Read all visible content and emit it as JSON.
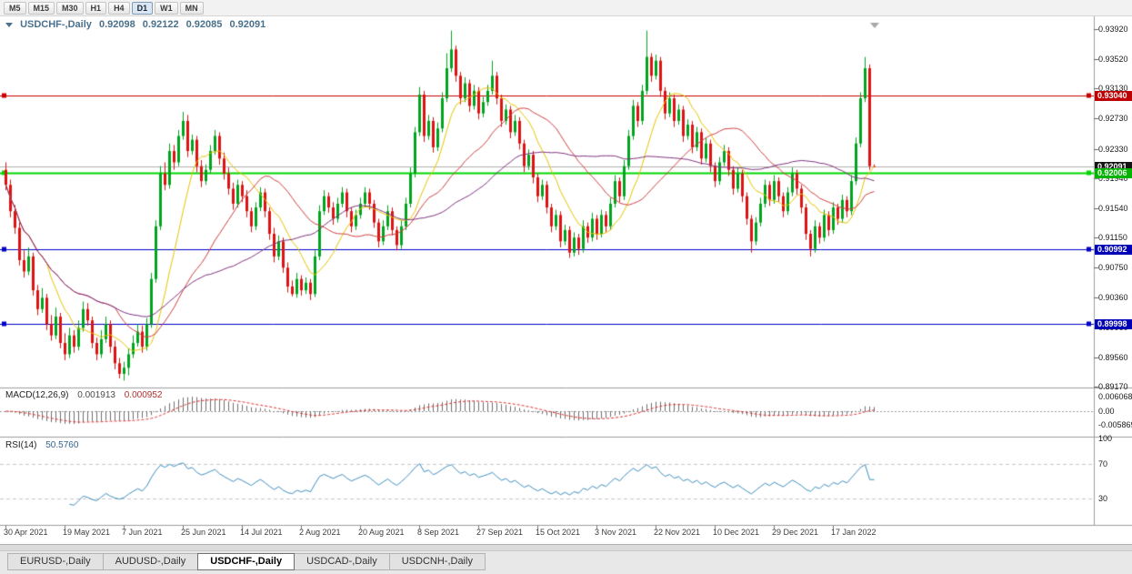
{
  "toolbar": {
    "timeframes": [
      "M5",
      "M15",
      "M30",
      "H1",
      "H4",
      "D1",
      "W1",
      "MN"
    ],
    "active_timeframe": "D1"
  },
  "header": {
    "symbol": "USDCHF-,Daily",
    "open": "0.92098",
    "high": "0.92122",
    "low": "0.92085",
    "close": "0.92091"
  },
  "price_scale": {
    "labels": [
      "0.93920",
      "0.93520",
      "0.93130",
      "0.92730",
      "0.92330",
      "0.91940",
      "0.91540",
      "0.91150",
      "0.90750",
      "0.90360",
      "0.89960",
      "0.89560",
      "0.89170"
    ]
  },
  "price_markers": [
    {
      "name": "resistance-line",
      "label": "0.93040",
      "price": 0.9304,
      "bg": "#C00000",
      "fg": "#FFFFFF"
    },
    {
      "name": "current-price",
      "label": "0.92091",
      "price": 0.92091,
      "bg": "#141414",
      "fg": "#FFFFFF"
    },
    {
      "name": "support-green",
      "label": "0.92006",
      "price": 0.92006,
      "bg": "#00B400",
      "fg": "#FFFFFF"
    },
    {
      "name": "support-blue-upper",
      "label": "0.90992",
      "price": 0.90992,
      "bg": "#0000B4",
      "fg": "#FFFFFF"
    },
    {
      "name": "support-blue-lower",
      "label": "0.89998",
      "price": 0.89998,
      "bg": "#0000B4",
      "fg": "#FFFFFF"
    }
  ],
  "indicators": {
    "macd": {
      "label": "MACD(12,26,9)",
      "value_macd": "0.001913",
      "value_signal": "0.000952",
      "scale": [
        "0.006068",
        "0.00",
        "-0.005869"
      ],
      "scale_values": [
        0.006068,
        0,
        -0.005869
      ]
    },
    "rsi": {
      "label": "RSI(14)",
      "value": "50.5760",
      "scale": [
        "100",
        "70",
        "30"
      ],
      "levels": [
        70,
        30
      ]
    }
  },
  "tabs": [
    {
      "label": "EURUSD-,Daily",
      "active": false
    },
    {
      "label": "AUDUSD-,Daily",
      "active": false
    },
    {
      "label": "USDCHF-,Daily",
      "active": true
    },
    {
      "label": "USDCAD-,Daily",
      "active": false
    },
    {
      "label": "USDCNH-,Daily",
      "active": false
    }
  ],
  "colors": {
    "bull": "#00A41E",
    "bear": "#DE1212",
    "ma_fast": "#E8C400",
    "ma_mid": "#D04040",
    "ma_slow": "#803380",
    "macd_hist": "#707070",
    "macd_signal": "#E03030",
    "rsi_line": "#3E8FC0",
    "hline_red": "#CC0000",
    "hline_green": "#00D800",
    "hline_blue": "#0000C8",
    "bid_line": "#B0B0B0"
  },
  "chart_data": {
    "type": "candlestick",
    "title": "USDCHF Daily",
    "ylim": [
      0.8917,
      0.9392
    ],
    "bars_per_label": 13,
    "x_labels": [
      "30 Apr 2021",
      "19 May 2021",
      "7 Jun 2021",
      "25 Jun 2021",
      "14 Jul 2021",
      "2 Aug 2021",
      "20 Aug 2021",
      "8 Sep 2021",
      "27 Sep 2021",
      "15 Oct 2021",
      "3 Nov 2021",
      "22 Nov 2021",
      "10 Dec 2021",
      "29 Dec 2021",
      "17 Jan 2022"
    ],
    "hlines": [
      {
        "price": 0.9304,
        "color_key": "hline_red"
      },
      {
        "price": 0.92091,
        "color_key": "bid_line"
      },
      {
        "price": 0.92006,
        "color_key": "hline_green"
      },
      {
        "price": 0.90992,
        "color_key": "hline_blue"
      },
      {
        "price": 0.89998,
        "color_key": "hline_blue"
      }
    ],
    "moving_averages": [
      {
        "period": 10,
        "color_key": "ma_fast"
      },
      {
        "period": 25,
        "color_key": "ma_mid"
      },
      {
        "period": 45,
        "color_key": "ma_slow"
      }
    ],
    "candles_ohlc": [
      [
        0.9205,
        0.9215,
        0.9178,
        0.9185
      ],
      [
        0.9185,
        0.9192,
        0.9142,
        0.915
      ],
      [
        0.915,
        0.9158,
        0.912,
        0.9128
      ],
      [
        0.9128,
        0.9135,
        0.9078,
        0.9085
      ],
      [
        0.9085,
        0.9098,
        0.9062,
        0.907
      ],
      [
        0.907,
        0.9102,
        0.9065,
        0.909
      ],
      [
        0.909,
        0.9095,
        0.9038,
        0.9045
      ],
      [
        0.9045,
        0.9052,
        0.9012,
        0.902
      ],
      [
        0.902,
        0.9048,
        0.9015,
        0.9035
      ],
      [
        0.9035,
        0.904,
        0.8992,
        0.9
      ],
      [
        0.9,
        0.9012,
        0.8978,
        0.8985
      ],
      [
        0.8985,
        0.9022,
        0.898,
        0.901
      ],
      [
        0.901,
        0.9015,
        0.8968,
        0.8975
      ],
      [
        0.8975,
        0.8988,
        0.8952,
        0.896
      ],
      [
        0.896,
        0.8995,
        0.8955,
        0.8985
      ],
      [
        0.8985,
        0.8992,
        0.8962,
        0.897
      ],
      [
        0.897,
        0.9005,
        0.8965,
        0.8995
      ],
      [
        0.8995,
        0.903,
        0.899,
        0.902
      ],
      [
        0.902,
        0.9028,
        0.8998,
        0.9005
      ],
      [
        0.9005,
        0.901,
        0.8968,
        0.8975
      ],
      [
        0.8975,
        0.8982,
        0.8952,
        0.896
      ],
      [
        0.896,
        0.8992,
        0.8955,
        0.898
      ],
      [
        0.898,
        0.901,
        0.8975,
        0.9
      ],
      [
        0.9,
        0.9005,
        0.8962,
        0.897
      ],
      [
        0.897,
        0.8978,
        0.894,
        0.8948
      ],
      [
        0.8948,
        0.8955,
        0.8928,
        0.8934
      ],
      [
        0.8934,
        0.895,
        0.8925,
        0.8942
      ],
      [
        0.8942,
        0.8968,
        0.8932,
        0.896
      ],
      [
        0.896,
        0.8985,
        0.8955,
        0.8975
      ],
      [
        0.8975,
        0.9,
        0.897,
        0.899
      ],
      [
        0.899,
        0.8998,
        0.8962,
        0.897
      ],
      [
        0.897,
        0.9008,
        0.8965,
        0.9
      ],
      [
        0.9,
        0.9068,
        0.8995,
        0.906
      ],
      [
        0.906,
        0.9138,
        0.9055,
        0.913
      ],
      [
        0.913,
        0.921,
        0.9125,
        0.92
      ],
      [
        0.92,
        0.9215,
        0.9178,
        0.9185
      ],
      [
        0.9185,
        0.924,
        0.918,
        0.923
      ],
      [
        0.923,
        0.9238,
        0.9205,
        0.9215
      ],
      [
        0.9215,
        0.9258,
        0.921,
        0.925
      ],
      [
        0.925,
        0.9282,
        0.9245,
        0.927
      ],
      [
        0.927,
        0.9278,
        0.9222,
        0.923
      ],
      [
        0.923,
        0.9252,
        0.9225,
        0.9245
      ],
      [
        0.9245,
        0.925,
        0.9202,
        0.921
      ],
      [
        0.921,
        0.9218,
        0.9182,
        0.919
      ],
      [
        0.919,
        0.9212,
        0.9185,
        0.9205
      ],
      [
        0.9205,
        0.9238,
        0.92,
        0.923
      ],
      [
        0.923,
        0.9258,
        0.9225,
        0.925
      ],
      [
        0.925,
        0.9255,
        0.9212,
        0.922
      ],
      [
        0.922,
        0.9228,
        0.9192,
        0.92
      ],
      [
        0.92,
        0.9208,
        0.9172,
        0.918
      ],
      [
        0.918,
        0.9188,
        0.9152,
        0.916
      ],
      [
        0.916,
        0.9192,
        0.9155,
        0.9185
      ],
      [
        0.9185,
        0.919,
        0.9162,
        0.917
      ],
      [
        0.917,
        0.9178,
        0.9142,
        0.915
      ],
      [
        0.915,
        0.9155,
        0.9122,
        0.913
      ],
      [
        0.913,
        0.9162,
        0.9125,
        0.9155
      ],
      [
        0.9155,
        0.9182,
        0.915,
        0.9175
      ],
      [
        0.9175,
        0.918,
        0.9142,
        0.915
      ],
      [
        0.915,
        0.9155,
        0.9112,
        0.912
      ],
      [
        0.912,
        0.9128,
        0.9082,
        0.909
      ],
      [
        0.909,
        0.9118,
        0.9085,
        0.911
      ],
      [
        0.911,
        0.9115,
        0.9068,
        0.9075
      ],
      [
        0.9075,
        0.9082,
        0.9042,
        0.905
      ],
      [
        0.905,
        0.9058,
        0.9037,
        0.904
      ],
      [
        0.904,
        0.9068,
        0.9035,
        0.906
      ],
      [
        0.906,
        0.9065,
        0.9038,
        0.9045
      ],
      [
        0.9045,
        0.9062,
        0.904,
        0.9055
      ],
      [
        0.9055,
        0.906,
        0.9032,
        0.904
      ],
      [
        0.904,
        0.9098,
        0.9036,
        0.909
      ],
      [
        0.909,
        0.9158,
        0.9085,
        0.915
      ],
      [
        0.915,
        0.9178,
        0.9145,
        0.917
      ],
      [
        0.917,
        0.9175,
        0.9148,
        0.9155
      ],
      [
        0.9155,
        0.9162,
        0.9132,
        0.914
      ],
      [
        0.914,
        0.9168,
        0.9135,
        0.916
      ],
      [
        0.916,
        0.9182,
        0.9155,
        0.9175
      ],
      [
        0.9175,
        0.918,
        0.9142,
        0.915
      ],
      [
        0.915,
        0.9155,
        0.9122,
        0.913
      ],
      [
        0.913,
        0.9152,
        0.9125,
        0.9145
      ],
      [
        0.9145,
        0.9168,
        0.914,
        0.916
      ],
      [
        0.916,
        0.9182,
        0.9155,
        0.9175
      ],
      [
        0.9175,
        0.918,
        0.9152,
        0.916
      ],
      [
        0.916,
        0.9165,
        0.9128,
        0.9135
      ],
      [
        0.9135,
        0.914,
        0.9102,
        0.911
      ],
      [
        0.911,
        0.9138,
        0.9105,
        0.913
      ],
      [
        0.913,
        0.9158,
        0.9125,
        0.915
      ],
      [
        0.915,
        0.9155,
        0.9118,
        0.9125
      ],
      [
        0.9125,
        0.913,
        0.9098,
        0.9105
      ],
      [
        0.9105,
        0.9138,
        0.91,
        0.913
      ],
      [
        0.913,
        0.9168,
        0.9125,
        0.916
      ],
      [
        0.916,
        0.9208,
        0.9155,
        0.92
      ],
      [
        0.92,
        0.9262,
        0.9195,
        0.9255
      ],
      [
        0.9255,
        0.9315,
        0.925,
        0.9305
      ],
      [
        0.9305,
        0.931,
        0.9242,
        0.925
      ],
      [
        0.925,
        0.9278,
        0.9245,
        0.927
      ],
      [
        0.927,
        0.9275,
        0.9228,
        0.9235
      ],
      [
        0.9235,
        0.9268,
        0.923,
        0.926
      ],
      [
        0.926,
        0.9308,
        0.9255,
        0.93
      ],
      [
        0.93,
        0.936,
        0.9295,
        0.934
      ],
      [
        0.934,
        0.939,
        0.9335,
        0.9365
      ],
      [
        0.9365,
        0.937,
        0.9322,
        0.933
      ],
      [
        0.933,
        0.9335,
        0.9292,
        0.93
      ],
      [
        0.93,
        0.9328,
        0.9295,
        0.932
      ],
      [
        0.932,
        0.9325,
        0.9282,
        0.929
      ],
      [
        0.929,
        0.9318,
        0.9285,
        0.931
      ],
      [
        0.931,
        0.9315,
        0.9272,
        0.928
      ],
      [
        0.928,
        0.9302,
        0.9275,
        0.9295
      ],
      [
        0.9295,
        0.9318,
        0.929,
        0.931
      ],
      [
        0.931,
        0.935,
        0.9305,
        0.933
      ],
      [
        0.933,
        0.9335,
        0.9292,
        0.93
      ],
      [
        0.93,
        0.9305,
        0.9262,
        0.927
      ],
      [
        0.927,
        0.9292,
        0.9265,
        0.9285
      ],
      [
        0.9285,
        0.929,
        0.9247,
        0.9255
      ],
      [
        0.9255,
        0.9278,
        0.925,
        0.927
      ],
      [
        0.927,
        0.9275,
        0.9232,
        0.924
      ],
      [
        0.924,
        0.9245,
        0.9202,
        0.921
      ],
      [
        0.921,
        0.9232,
        0.9205,
        0.9225
      ],
      [
        0.9225,
        0.923,
        0.9187,
        0.9195
      ],
      [
        0.9195,
        0.92,
        0.9162,
        0.917
      ],
      [
        0.917,
        0.9192,
        0.9165,
        0.9185
      ],
      [
        0.9185,
        0.919,
        0.9147,
        0.9155
      ],
      [
        0.9155,
        0.916,
        0.9122,
        0.913
      ],
      [
        0.913,
        0.9152,
        0.9125,
        0.9145
      ],
      [
        0.9145,
        0.915,
        0.9102,
        0.911
      ],
      [
        0.911,
        0.9132,
        0.9105,
        0.9125
      ],
      [
        0.9125,
        0.913,
        0.9088,
        0.9095
      ],
      [
        0.9095,
        0.9122,
        0.909,
        0.9115
      ],
      [
        0.9115,
        0.912,
        0.9092,
        0.91
      ],
      [
        0.91,
        0.9138,
        0.9095,
        0.913
      ],
      [
        0.913,
        0.9135,
        0.9108,
        0.9115
      ],
      [
        0.9115,
        0.9148,
        0.911,
        0.914
      ],
      [
        0.914,
        0.9145,
        0.9112,
        0.912
      ],
      [
        0.912,
        0.9152,
        0.9115,
        0.9145
      ],
      [
        0.9145,
        0.915,
        0.9122,
        0.913
      ],
      [
        0.913,
        0.9168,
        0.9125,
        0.916
      ],
      [
        0.916,
        0.9198,
        0.9155,
        0.919
      ],
      [
        0.919,
        0.9195,
        0.9162,
        0.917
      ],
      [
        0.917,
        0.9218,
        0.9165,
        0.921
      ],
      [
        0.921,
        0.9258,
        0.9205,
        0.925
      ],
      [
        0.925,
        0.9298,
        0.9245,
        0.929
      ],
      [
        0.929,
        0.9295,
        0.9262,
        0.927
      ],
      [
        0.927,
        0.9318,
        0.9265,
        0.931
      ],
      [
        0.931,
        0.939,
        0.9305,
        0.9355
      ],
      [
        0.9355,
        0.936,
        0.9322,
        0.933
      ],
      [
        0.933,
        0.9358,
        0.9325,
        0.935
      ],
      [
        0.935,
        0.9355,
        0.9302,
        0.931
      ],
      [
        0.931,
        0.9315,
        0.9272,
        0.928
      ],
      [
        0.928,
        0.9308,
        0.9275,
        0.93
      ],
      [
        0.93,
        0.9305,
        0.9262,
        0.927
      ],
      [
        0.927,
        0.9292,
        0.9265,
        0.9285
      ],
      [
        0.9285,
        0.929,
        0.9242,
        0.925
      ],
      [
        0.925,
        0.9272,
        0.9245,
        0.9265
      ],
      [
        0.9265,
        0.927,
        0.9227,
        0.9235
      ],
      [
        0.9235,
        0.9262,
        0.923,
        0.9255
      ],
      [
        0.9255,
        0.926,
        0.9212,
        0.922
      ],
      [
        0.922,
        0.9248,
        0.9215,
        0.924
      ],
      [
        0.924,
        0.9245,
        0.9202,
        0.921
      ],
      [
        0.921,
        0.9215,
        0.9182,
        0.919
      ],
      [
        0.919,
        0.9222,
        0.9185,
        0.9215
      ],
      [
        0.9215,
        0.9238,
        0.921,
        0.923
      ],
      [
        0.923,
        0.9235,
        0.9197,
        0.9205
      ],
      [
        0.9205,
        0.921,
        0.9172,
        0.918
      ],
      [
        0.918,
        0.9208,
        0.9175,
        0.92
      ],
      [
        0.92,
        0.9205,
        0.9162,
        0.917
      ],
      [
        0.917,
        0.9175,
        0.9132,
        0.914
      ],
      [
        0.914,
        0.9145,
        0.9095,
        0.911
      ],
      [
        0.911,
        0.9142,
        0.9105,
        0.9135
      ],
      [
        0.9135,
        0.9168,
        0.913,
        0.916
      ],
      [
        0.916,
        0.9192,
        0.9155,
        0.9185
      ],
      [
        0.9185,
        0.919,
        0.9157,
        0.9165
      ],
      [
        0.9165,
        0.9198,
        0.916,
        0.919
      ],
      [
        0.919,
        0.9195,
        0.9162,
        0.917
      ],
      [
        0.917,
        0.9175,
        0.9142,
        0.915
      ],
      [
        0.915,
        0.9182,
        0.9145,
        0.9175
      ],
      [
        0.9175,
        0.9208,
        0.917,
        0.92
      ],
      [
        0.92,
        0.9205,
        0.9172,
        0.918
      ],
      [
        0.918,
        0.9185,
        0.9147,
        0.9155
      ],
      [
        0.9155,
        0.916,
        0.9112,
        0.912
      ],
      [
        0.912,
        0.9125,
        0.909,
        0.91
      ],
      [
        0.91,
        0.9138,
        0.9095,
        0.913
      ],
      [
        0.913,
        0.9135,
        0.9107,
        0.9115
      ],
      [
        0.9115,
        0.9152,
        0.911,
        0.9145
      ],
      [
        0.9145,
        0.915,
        0.9117,
        0.9125
      ],
      [
        0.9125,
        0.9162,
        0.912,
        0.9155
      ],
      [
        0.9155,
        0.916,
        0.9132,
        0.914
      ],
      [
        0.914,
        0.9172,
        0.9135,
        0.9165
      ],
      [
        0.9165,
        0.917,
        0.9142,
        0.915
      ],
      [
        0.915,
        0.9198,
        0.9145,
        0.919
      ],
      [
        0.919,
        0.9248,
        0.9185,
        0.924
      ],
      [
        0.924,
        0.9308,
        0.9235,
        0.93
      ],
      [
        0.93,
        0.9355,
        0.9295,
        0.934
      ],
      [
        0.934,
        0.9345,
        0.9205,
        0.921
      ],
      [
        0.92098,
        0.92122,
        0.92085,
        0.92091
      ]
    ]
  }
}
